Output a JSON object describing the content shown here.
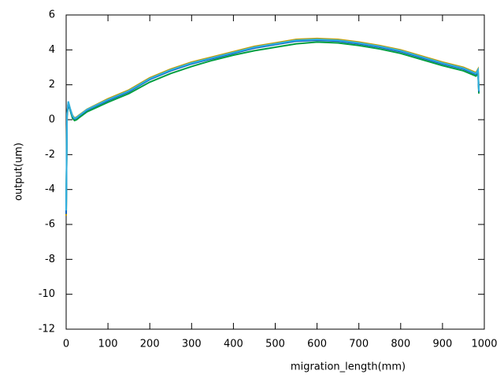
{
  "chart_data": {
    "type": "line",
    "xlabel": "migration_length(mm)",
    "ylabel": "output(um)",
    "x": [
      0,
      2,
      5,
      10,
      15,
      20,
      25,
      30,
      50,
      100,
      150,
      200,
      250,
      300,
      350,
      400,
      450,
      500,
      550,
      600,
      650,
      700,
      750,
      800,
      850,
      900,
      950,
      980,
      985,
      987
    ],
    "series": [
      {
        "color": "#c8a000",
        "values": [
          -5.5,
          0.3,
          1.0,
          0.6,
          0.25,
          0.1,
          0.15,
          0.25,
          0.6,
          1.2,
          1.7,
          2.4,
          2.9,
          3.3,
          3.6,
          3.9,
          4.2,
          4.4,
          4.6,
          4.65,
          4.6,
          4.45,
          4.25,
          4.0,
          3.65,
          3.3,
          3.0,
          2.7,
          2.9,
          1.7
        ]
      },
      {
        "color": "#009e40",
        "values": [
          -5.3,
          0.2,
          0.9,
          0.5,
          0.1,
          -0.05,
          0.0,
          0.1,
          0.45,
          1.0,
          1.5,
          2.15,
          2.65,
          3.05,
          3.4,
          3.7,
          3.95,
          4.15,
          4.35,
          4.45,
          4.4,
          4.25,
          4.05,
          3.8,
          3.45,
          3.1,
          2.8,
          2.5,
          2.7,
          1.5
        ]
      },
      {
        "color": "#1060c0",
        "values": [
          -5.4,
          0.25,
          0.95,
          0.55,
          0.2,
          0.05,
          0.1,
          0.2,
          0.55,
          1.1,
          1.6,
          2.3,
          2.8,
          3.2,
          3.5,
          3.8,
          4.1,
          4.3,
          4.5,
          4.55,
          4.5,
          4.35,
          4.15,
          3.9,
          3.55,
          3.2,
          2.9,
          2.6,
          2.8,
          1.6
        ]
      },
      {
        "color": "#30b0e0",
        "values": [
          -5.2,
          0.3,
          1.05,
          0.6,
          0.22,
          0.08,
          0.12,
          0.22,
          0.58,
          1.15,
          1.65,
          2.35,
          2.85,
          3.25,
          3.55,
          3.85,
          4.15,
          4.35,
          4.55,
          4.6,
          4.55,
          4.4,
          4.2,
          3.95,
          3.6,
          3.25,
          2.95,
          2.65,
          2.85,
          1.65
        ]
      }
    ],
    "xlim": [
      0,
      1000
    ],
    "xticks": [
      0,
      100,
      200,
      300,
      400,
      500,
      600,
      700,
      800,
      900,
      1000
    ],
    "ylim": [
      -12,
      6
    ],
    "yticks": [
      -12,
      -10,
      -8,
      -6,
      -4,
      -2,
      0,
      2,
      4,
      6
    ]
  }
}
